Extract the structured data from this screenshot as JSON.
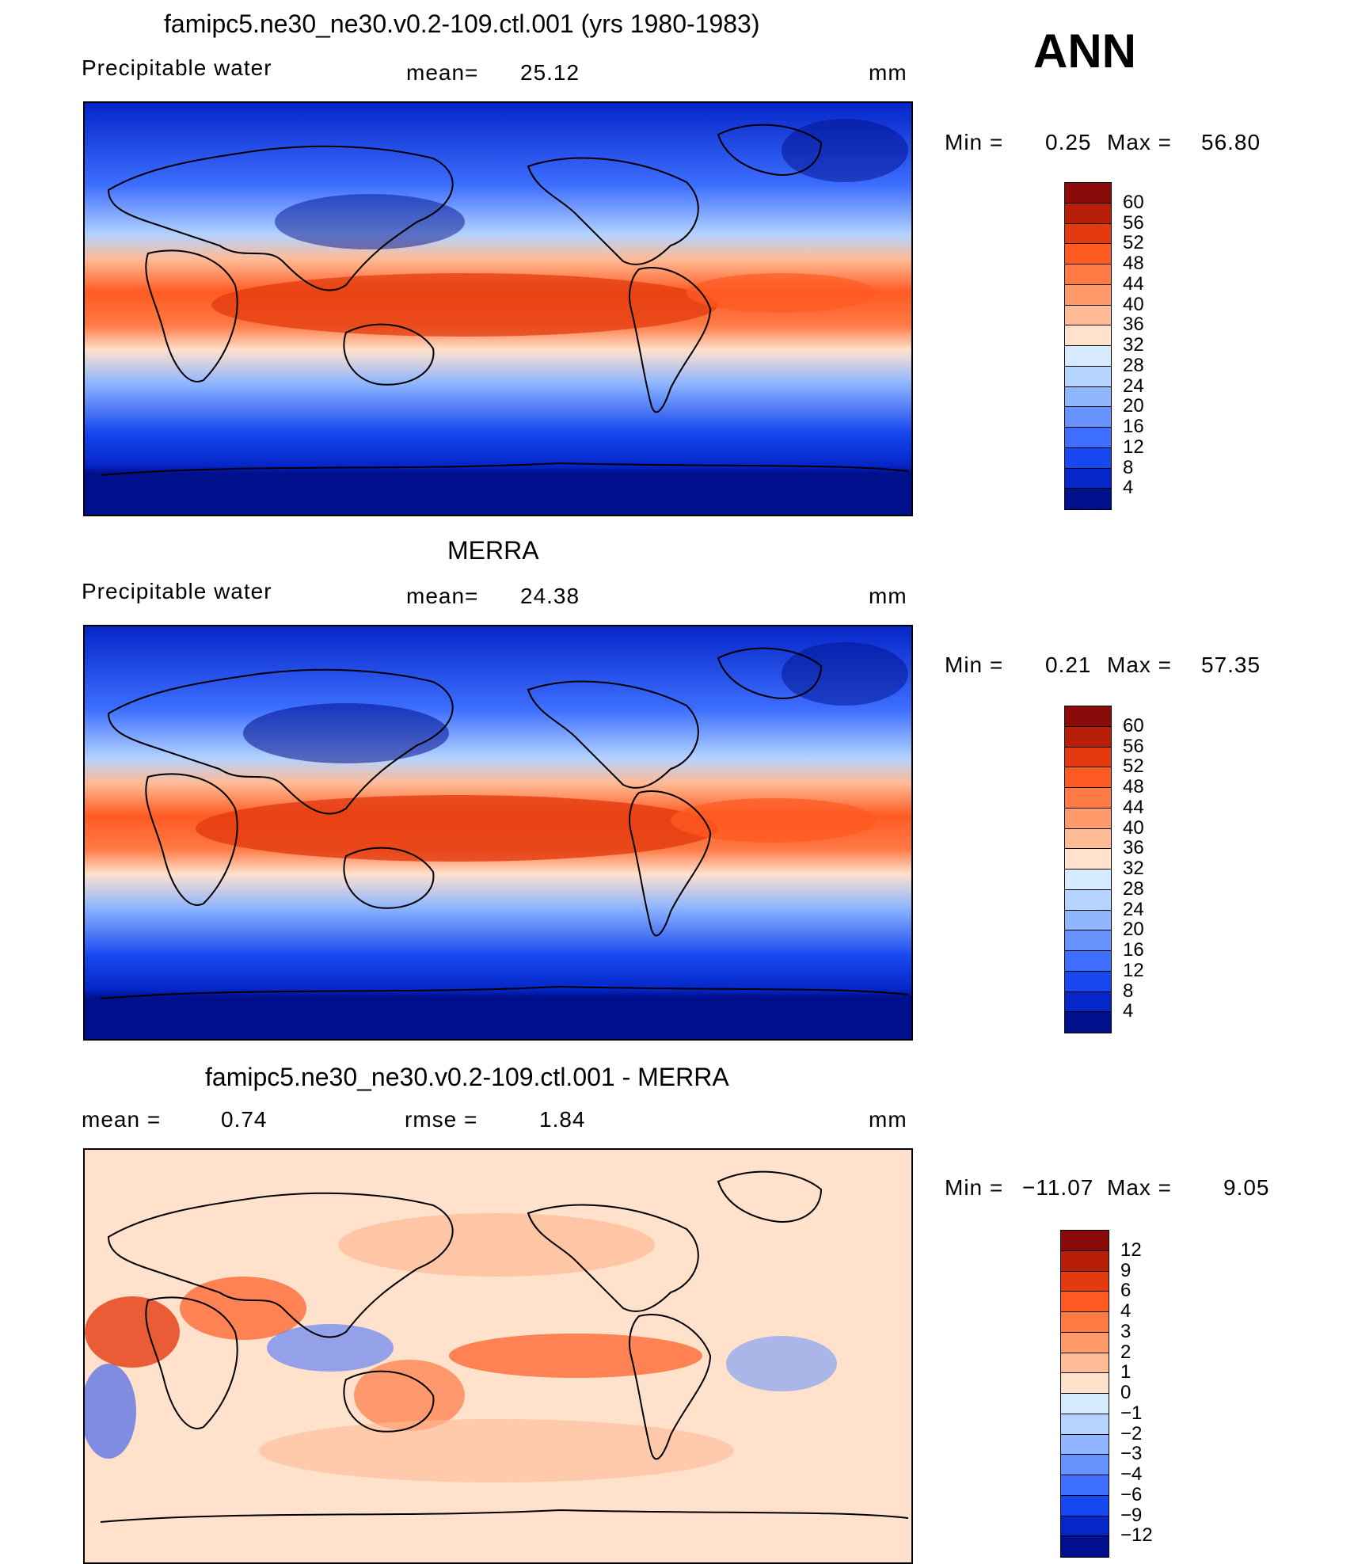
{
  "season": "ANN",
  "panels": [
    {
      "title": "famipc5.ne30_ne30.v0.2-109.ctl.001 (yrs 1980-1983)",
      "left_label": "Precipitable  water",
      "center_label": "mean=",
      "center_value": "25.12",
      "units": "mm",
      "minmax": {
        "min_label": "Min  =",
        "min": "0.25",
        "max_label": "Max  =",
        "max": "56.80"
      },
      "colorbar": {
        "ticks": [
          "60",
          "56",
          "52",
          "48",
          "44",
          "40",
          "36",
          "32",
          "28",
          "24",
          "20",
          "16",
          "12",
          "8",
          "4"
        ],
        "colors": [
          "#8b0a0a",
          "#b81f08",
          "#e33b0f",
          "#ff5a22",
          "#ff7a45",
          "#ff9a6a",
          "#ffbb96",
          "#ffe1cc",
          "#d6ebff",
          "#b4d3ff",
          "#8fb6ff",
          "#6693ff",
          "#3d6eff",
          "#1747f0",
          "#0526c8",
          "#000f8c"
        ]
      }
    },
    {
      "title": "MERRA",
      "left_label": "Precipitable  water",
      "center_label": "mean=",
      "center_value": "24.38",
      "units": "mm",
      "minmax": {
        "min_label": "Min  =",
        "min": "0.21",
        "max_label": "Max  =",
        "max": "57.35"
      },
      "colorbar": {
        "ticks": [
          "60",
          "56",
          "52",
          "48",
          "44",
          "40",
          "36",
          "32",
          "28",
          "24",
          "20",
          "16",
          "12",
          "8",
          "4"
        ],
        "colors": [
          "#8b0a0a",
          "#b81f08",
          "#e33b0f",
          "#ff5a22",
          "#ff7a45",
          "#ff9a6a",
          "#ffbb96",
          "#ffe1cc",
          "#d6ebff",
          "#b4d3ff",
          "#8fb6ff",
          "#6693ff",
          "#3d6eff",
          "#1747f0",
          "#0526c8",
          "#000f8c"
        ]
      }
    },
    {
      "title": "famipc5.ne30_ne30.v0.2-109.ctl.001 - MERRA",
      "left_label": "mean  =",
      "left_value": "0.74",
      "center_label": "rmse  =",
      "center_value": "1.84",
      "units": "mm",
      "minmax": {
        "min_label": "Min  =",
        "min": "−11.07",
        "max_label": "Max  =",
        "max": "9.05"
      },
      "colorbar": {
        "ticks": [
          "12",
          "9",
          "6",
          "4",
          "3",
          "2",
          "1",
          "0",
          "−1",
          "−2",
          "−3",
          "−4",
          "−6",
          "−9",
          "−12"
        ],
        "colors": [
          "#8b0a0a",
          "#b81f08",
          "#e33b0f",
          "#ff5a22",
          "#ff7a45",
          "#ff9a6a",
          "#ffbb96",
          "#ffe1cc",
          "#d6ebff",
          "#b4d3ff",
          "#8fb6ff",
          "#6693ff",
          "#3d6eff",
          "#1747f0",
          "#0526c8",
          "#000f8c"
        ]
      }
    }
  ]
}
